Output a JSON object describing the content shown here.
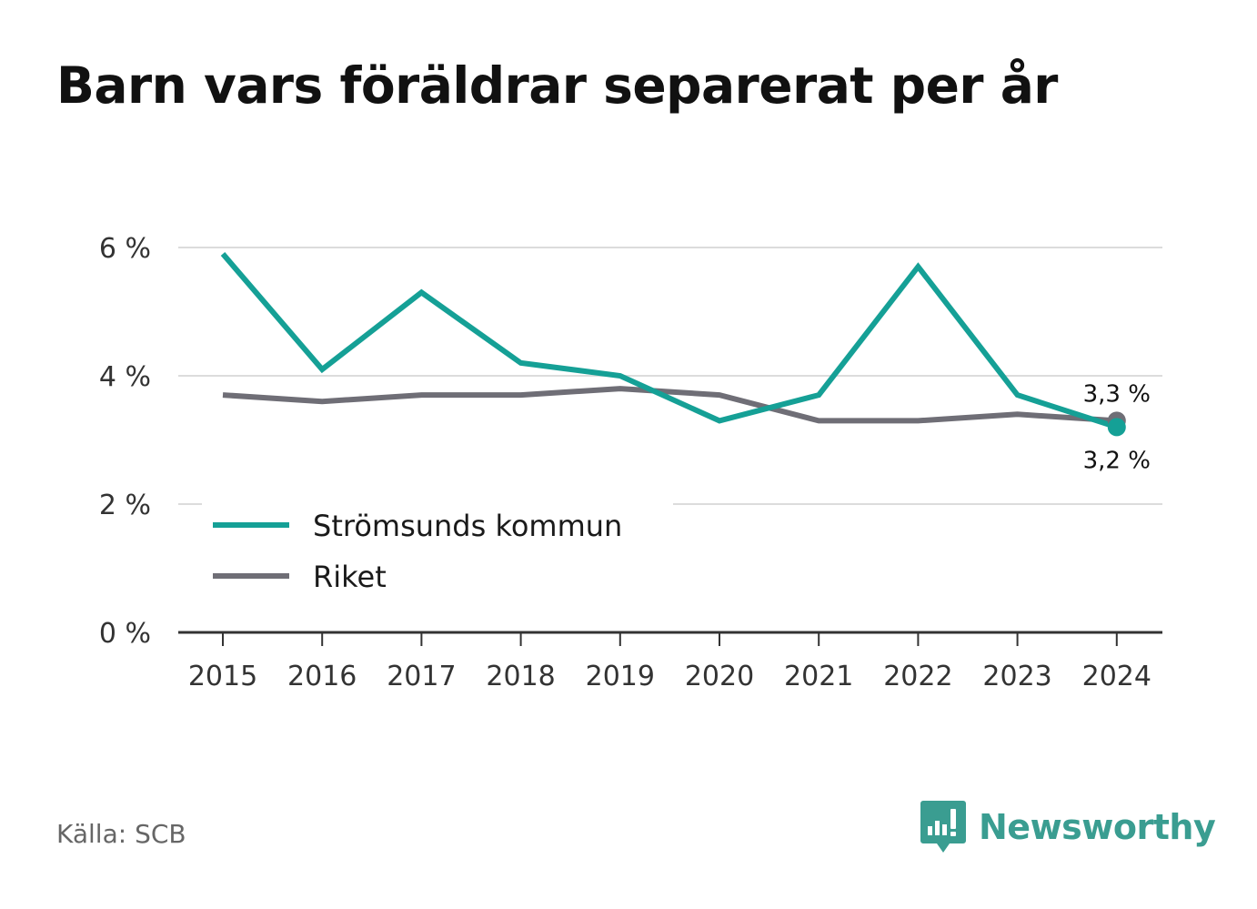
{
  "chart_data": {
    "type": "line",
    "title": "Barn vars föräldrar separerat per år",
    "x": [
      "2015",
      "2016",
      "2017",
      "2018",
      "2019",
      "2020",
      "2021",
      "2022",
      "2023",
      "2024"
    ],
    "ylim": [
      0,
      6.3
    ],
    "y_ticks": [
      {
        "value": 0,
        "label": "0 %"
      },
      {
        "value": 2,
        "label": "2 %"
      },
      {
        "value": 4,
        "label": "4 %"
      },
      {
        "value": 6,
        "label": "6 %"
      }
    ],
    "grid": true,
    "legend_position": "bottom-left",
    "series": [
      {
        "name": "Strömsunds kommun",
        "color": "#15a096",
        "values": [
          5.9,
          4.1,
          5.3,
          4.2,
          4.0,
          3.3,
          3.7,
          5.7,
          3.7,
          3.2
        ],
        "end_label": "3,2 %"
      },
      {
        "name": "Riket",
        "color": "#6f6e76",
        "values": [
          3.7,
          3.6,
          3.7,
          3.7,
          3.8,
          3.7,
          3.3,
          3.3,
          3.4,
          3.3
        ],
        "end_label": "3,3 %"
      }
    ]
  },
  "footer": {
    "source": "Källa: SCB",
    "brand": "Newsworthy",
    "brand_color": "#3a9d91",
    "brand_icon": "bar-chart-speech-bubble-icon"
  }
}
